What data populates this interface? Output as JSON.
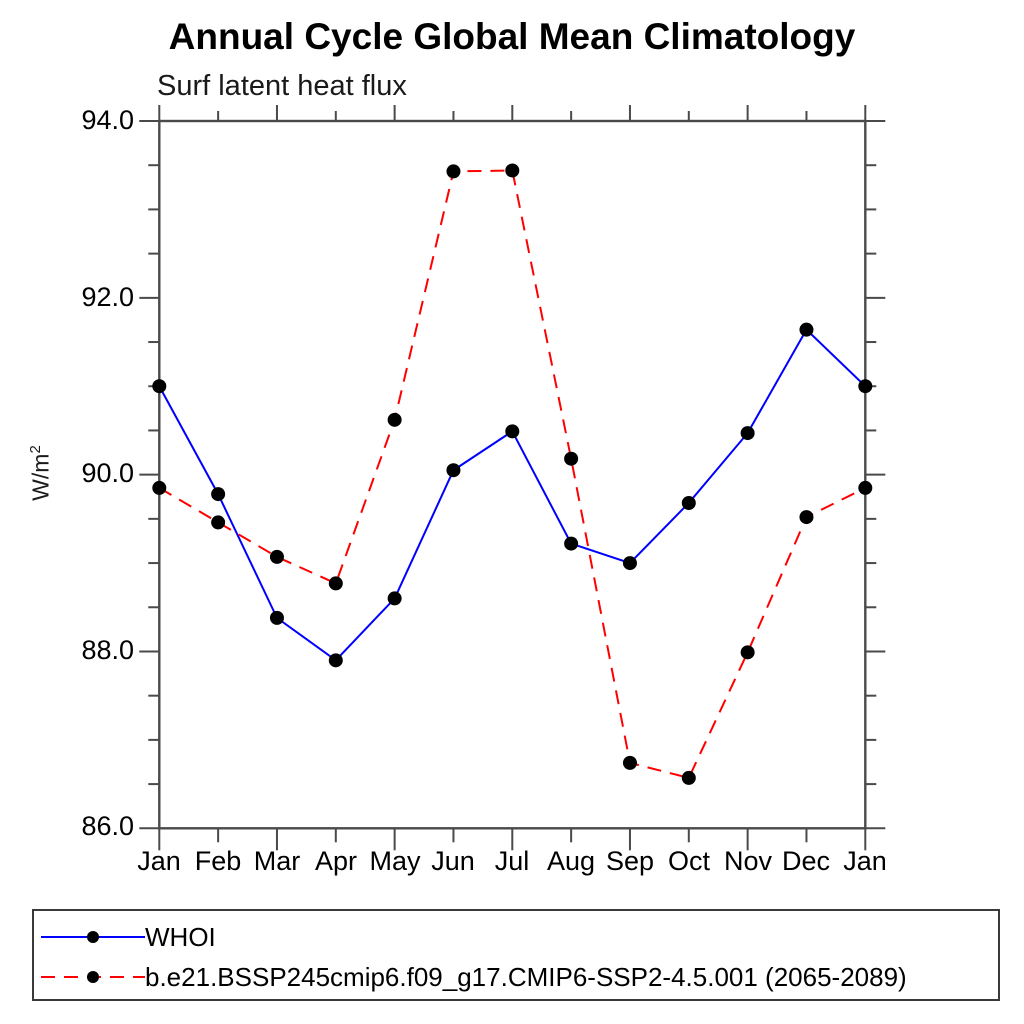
{
  "header": {
    "title": "Annual Cycle Global Mean Climatology",
    "subtitle": "Surf latent heat flux"
  },
  "colors": {
    "axis": "#4a4a4a",
    "tick": "#4a4a4a",
    "marker": "#000000",
    "series1": "#0000ff",
    "series2": "#ff0000",
    "legend_border": "#3a3a3a"
  },
  "chart_data": {
    "type": "line",
    "title": "Annual Cycle Global Mean Climatology",
    "subtitle": "Surf latent heat flux",
    "xlabel": "",
    "ylabel": "W/m²",
    "ylabel_base": "W/m",
    "ylabel_sup": "2",
    "categories": [
      "Jan",
      "Feb",
      "Mar",
      "Apr",
      "May",
      "Jun",
      "Jul",
      "Aug",
      "Sep",
      "Oct",
      "Nov",
      "Dec",
      "Jan"
    ],
    "ylim": [
      86.0,
      94.0
    ],
    "ytick_major_step": 2.0,
    "ytick_minor_step": 0.5,
    "ytick_labels": [
      "94.0",
      "92.0",
      "90.0",
      "88.0",
      "86.0"
    ],
    "grid": "off",
    "legend_position": "bottom-left",
    "series": [
      {
        "name": "WHOI",
        "color": "#0000ff",
        "style": "solid",
        "marker": "circle",
        "marker_color": "#000000",
        "values": [
          91.0,
          89.78,
          88.38,
          87.9,
          88.6,
          90.05,
          90.49,
          89.22,
          89.0,
          89.68,
          90.47,
          91.64,
          91.0
        ]
      },
      {
        "name": "b.e21.BSSP245cmip6.f09_g17.CMIP6-SSP2-4.5.001 (2065-2089)",
        "color": "#ff0000",
        "style": "dashed",
        "marker": "circle",
        "marker_color": "#000000",
        "values": [
          89.85,
          89.46,
          89.07,
          88.77,
          90.62,
          93.43,
          93.44,
          90.18,
          86.74,
          86.57,
          87.99,
          89.52,
          89.85
        ]
      }
    ]
  }
}
